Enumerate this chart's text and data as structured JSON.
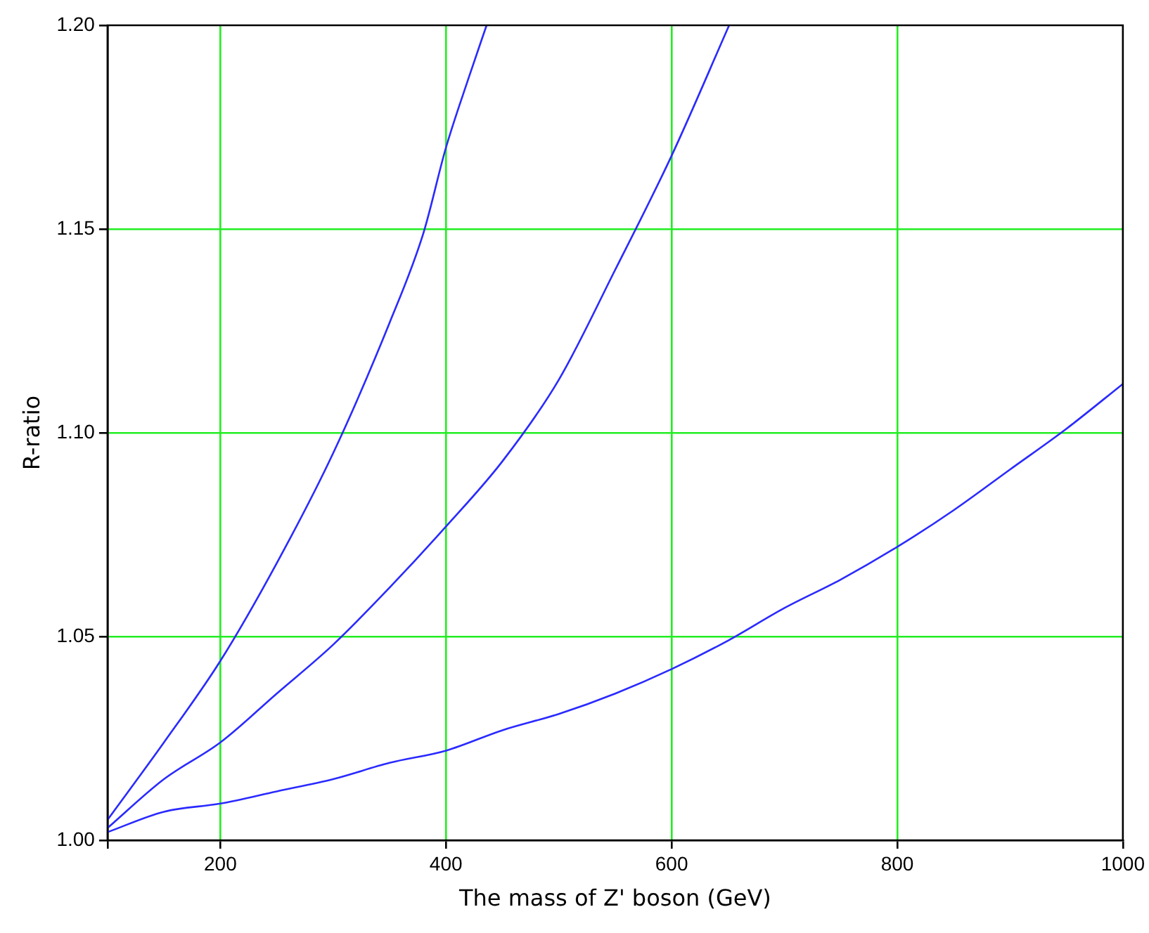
{
  "chart_data": {
    "type": "line",
    "xlabel": "The mass of Z' boson (GeV)",
    "ylabel": "R-ratio",
    "xlim": [
      100,
      1000
    ],
    "ylim": [
      1.0,
      1.2
    ],
    "xticks": [
      {
        "value": 100,
        "label": null
      },
      200,
      400,
      600,
      800,
      1000
    ],
    "yticks": [
      {
        "value": 1.0,
        "label": "1.00"
      },
      1.05,
      {
        "value": 1.1,
        "label": "1.10"
      },
      1.15,
      {
        "value": 1.2,
        "label": "1.20"
      }
    ],
    "grid": true,
    "legend": false,
    "marker": "none",
    "line_style": "solid",
    "series": [
      {
        "color": "#2a2aff",
        "x": [
          100,
          150,
          200,
          250,
          300,
          350,
          380,
          400,
          420,
          436
        ],
        "values": [
          1.005,
          1.024,
          1.044,
          1.068,
          1.095,
          1.127,
          1.149,
          1.17,
          1.187,
          1.2
        ]
      },
      {
        "color": "#2a2aff",
        "x": [
          100,
          150,
          200,
          250,
          300,
          350,
          400,
          450,
          500,
          550,
          600,
          651
        ],
        "values": [
          1.003,
          1.015,
          1.024,
          1.036,
          1.048,
          1.062,
          1.077,
          1.093,
          1.113,
          1.14,
          1.168,
          1.2
        ]
      },
      {
        "color": "#2a2aff",
        "x": [
          100,
          150,
          200,
          250,
          300,
          350,
          400,
          450,
          500,
          550,
          600,
          650,
          700,
          750,
          800,
          850,
          900,
          950,
          1000
        ],
        "values": [
          1.002,
          1.007,
          1.009,
          1.012,
          1.015,
          1.019,
          1.022,
          1.027,
          1.031,
          1.036,
          1.042,
          1.049,
          1.057,
          1.064,
          1.072,
          1.081,
          1.091,
          1.101,
          1.112
        ]
      }
    ]
  }
}
